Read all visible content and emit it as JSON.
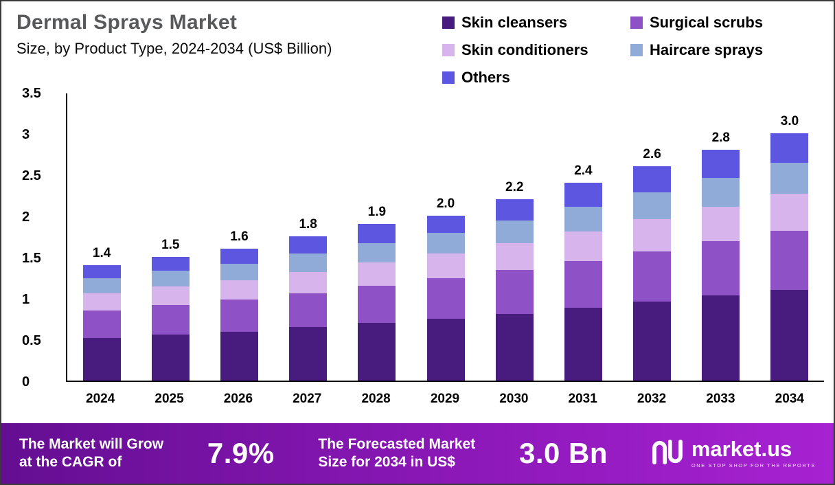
{
  "header": {
    "title": "Dermal Sprays Market",
    "subtitle": "Size, by Product Type, 2024-2034 (US$ Billion)"
  },
  "chart_data": {
    "type": "bar",
    "stacked": true,
    "title": "Dermal Sprays Market Size, by Product Type, 2024-2034 (US$ Billion)",
    "xlabel": "",
    "ylabel": "US$ Billion",
    "ylim": [
      0,
      3.5
    ],
    "yticks": [
      "0",
      "0.5",
      "1",
      "1.5",
      "2",
      "2.5",
      "3",
      "3.5"
    ],
    "grid": false,
    "legend_position": "top-right",
    "categories": [
      "2024",
      "2025",
      "2026",
      "2027",
      "2028",
      "2029",
      "2030",
      "2031",
      "2032",
      "2033",
      "2034"
    ],
    "totals": [
      1.4,
      1.5,
      1.6,
      1.8,
      1.9,
      2.0,
      2.2,
      2.4,
      2.6,
      2.8,
      3.0
    ],
    "series": [
      {
        "name": "Skin cleansers",
        "color": "#481b7e",
        "values": [
          0.52,
          0.56,
          0.59,
          0.65,
          0.7,
          0.75,
          0.81,
          0.88,
          0.96,
          1.03,
          1.1
        ]
      },
      {
        "name": "Surgical scrubs",
        "color": "#8f52c6",
        "values": [
          0.33,
          0.36,
          0.39,
          0.41,
          0.45,
          0.49,
          0.53,
          0.57,
          0.61,
          0.66,
          0.72
        ]
      },
      {
        "name": "Skin conditioners",
        "color": "#d8b4ec",
        "values": [
          0.21,
          0.22,
          0.24,
          0.26,
          0.28,
          0.3,
          0.33,
          0.36,
          0.39,
          0.42,
          0.45
        ]
      },
      {
        "name": "Haircare sprays",
        "color": "#90abd8",
        "values": [
          0.18,
          0.19,
          0.2,
          0.22,
          0.24,
          0.25,
          0.27,
          0.3,
          0.32,
          0.35,
          0.37
        ]
      },
      {
        "name": "Others",
        "color": "#5c56e0",
        "values": [
          0.16,
          0.17,
          0.18,
          0.21,
          0.23,
          0.21,
          0.26,
          0.29,
          0.32,
          0.34,
          0.36
        ]
      }
    ]
  },
  "footer": {
    "cagr_label": "The Market will Grow\nat the CAGR of",
    "cagr_value": "7.9%",
    "forecast_label": "The Forecasted Market\nSize for 2034 in US$",
    "forecast_value": "3.0 Bn",
    "brand_name": "market.us",
    "brand_tagline": "One Stop Shop for the Reports"
  }
}
